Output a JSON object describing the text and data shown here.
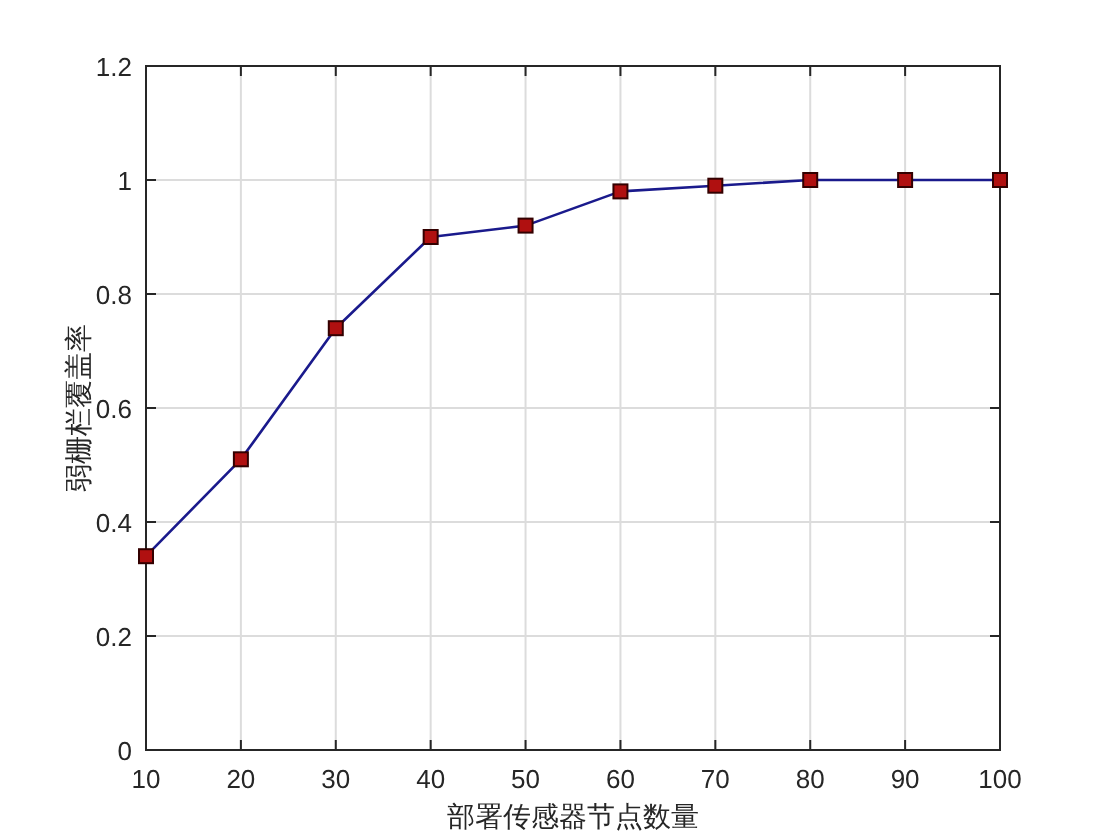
{
  "chart_data": {
    "type": "line",
    "xlabel": "部署传感器节点数量",
    "ylabel": "弱栅栏覆盖率",
    "x": [
      10,
      20,
      30,
      40,
      50,
      60,
      70,
      80,
      90,
      100
    ],
    "series": [
      {
        "color": "#1a1a8c",
        "values": [
          0.34,
          0.51,
          0.74,
          0.9,
          0.92,
          0.98,
          0.99,
          1,
          1,
          1
        ]
      }
    ],
    "xlim": [
      10,
      100
    ],
    "xticks": [
      10,
      20,
      30,
      40,
      50,
      60,
      70,
      80,
      90,
      100
    ],
    "ylim": [
      0,
      1.2
    ],
    "yticks": [
      0,
      0.2,
      0.4,
      0.6,
      0.8,
      1,
      1.2
    ],
    "grid": true,
    "marker": "square",
    "line_style": "solid"
  }
}
